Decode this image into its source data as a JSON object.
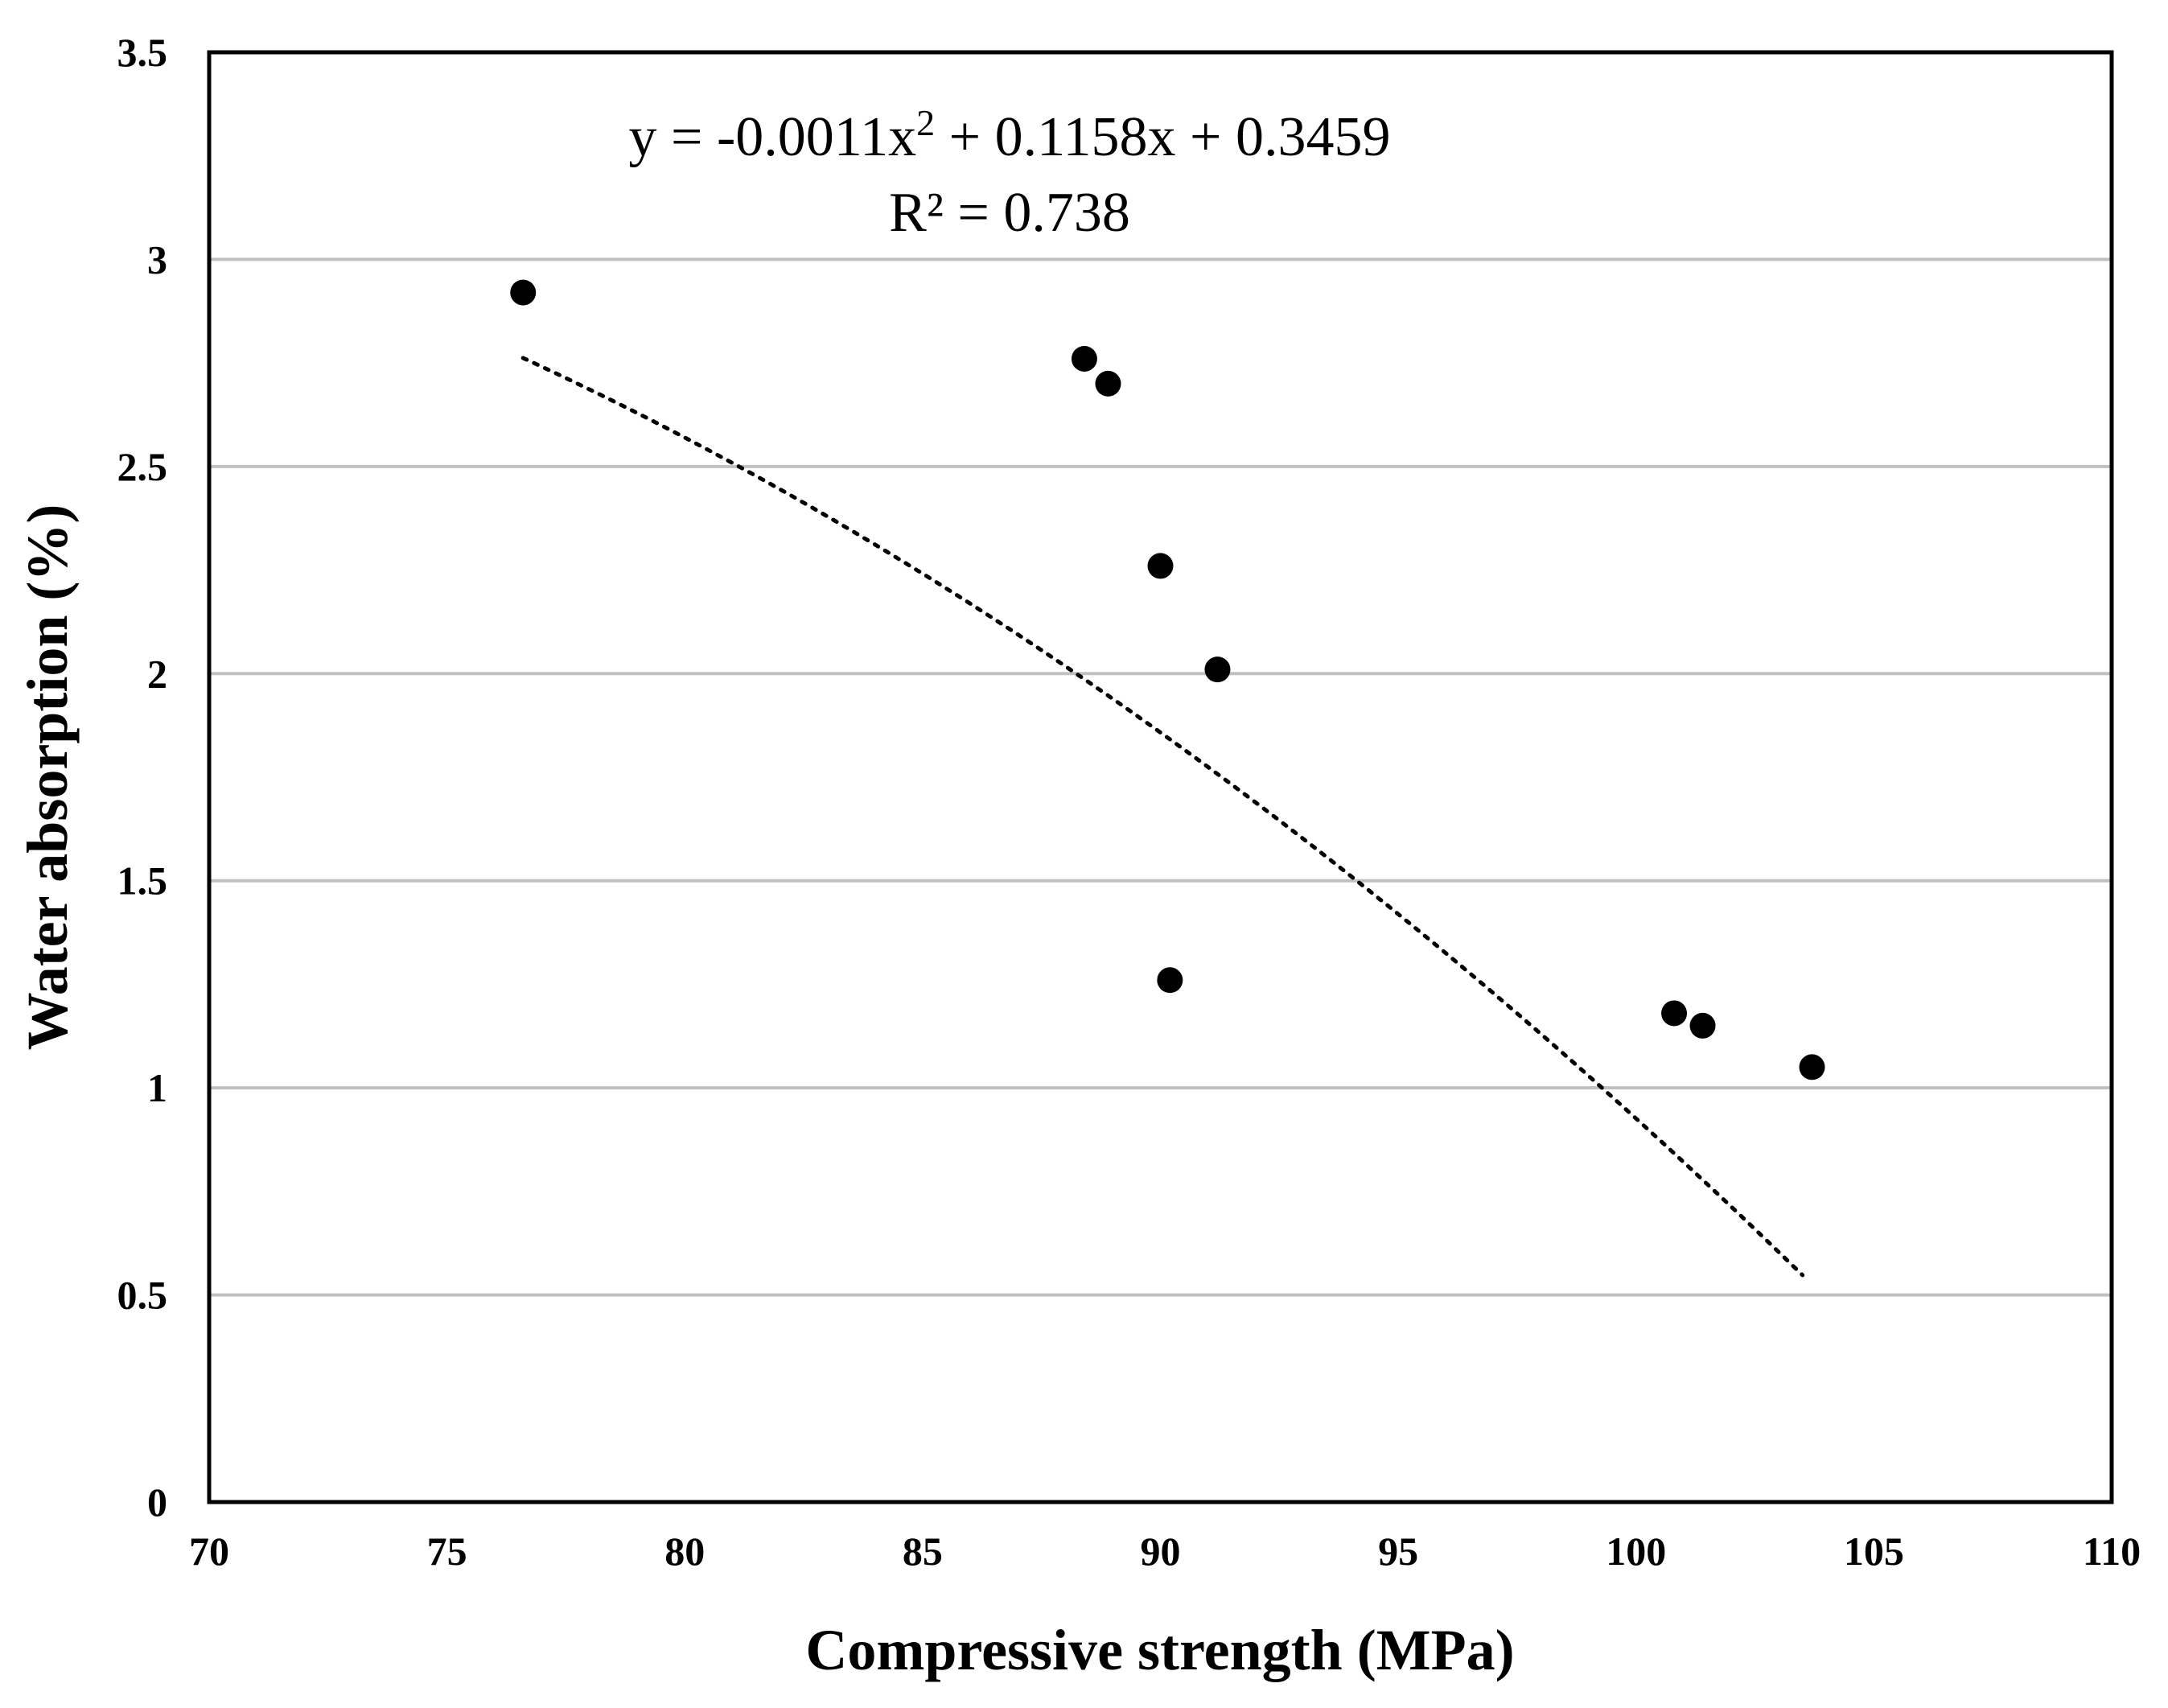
{
  "chart_data": {
    "type": "scatter",
    "title": "",
    "xlabel": "Compressive strength (MPa)",
    "ylabel": "Water absorption (%)",
    "xlim": [
      70,
      110
    ],
    "ylim": [
      0,
      3.5
    ],
    "xticks": [
      70,
      75,
      80,
      85,
      90,
      95,
      100,
      105,
      110
    ],
    "yticks": [
      0,
      0.5,
      1,
      1.5,
      2,
      2.5,
      3,
      3.5
    ],
    "xtick_labels": [
      "70",
      "75",
      "80",
      "85",
      "90",
      "95",
      "100",
      "105",
      "110"
    ],
    "ytick_labels": [
      "0",
      "0.5",
      "1",
      "1.5",
      "2",
      "2.5",
      "3",
      "3.5"
    ],
    "grid": "horizontal",
    "series": [
      {
        "name": "Water absorption",
        "color": "#000000",
        "x": [
          76.6,
          88.4,
          88.9,
          90.0,
          91.2,
          90.2,
          100.8,
          101.4,
          103.7
        ],
        "y": [
          2.92,
          2.76,
          2.7,
          2.26,
          2.01,
          1.26,
          1.18,
          1.15,
          1.05
        ]
      }
    ],
    "trendline": {
      "type": "polynomial",
      "order": 2,
      "coefficients": [
        -0.0011,
        0.1158,
        0.3459
      ],
      "x_range": [
        76.6,
        103.5
      ],
      "style": "dotted",
      "color": "#000000"
    },
    "annotations": {
      "equation_prefix": "y = -0.0011x",
      "equation_exp": "2",
      "equation_suffix": " + 0.1158x + 0.3459",
      "r_squared": "R² = 0.738"
    },
    "colors": {
      "grid": "#c0c0c0",
      "frame": "#000000",
      "marker": "#000000"
    }
  }
}
